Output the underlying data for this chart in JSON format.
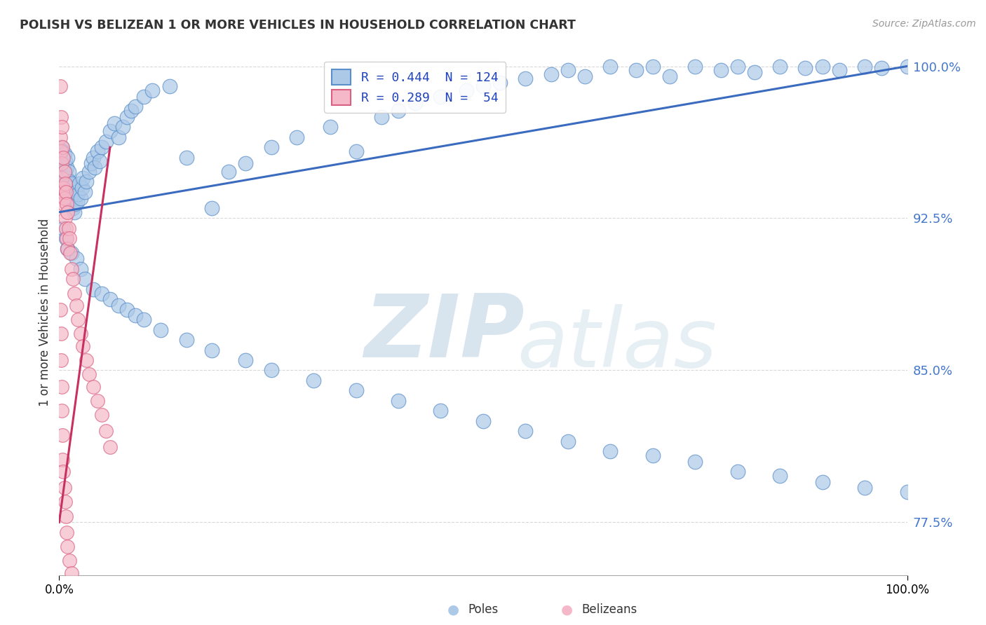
{
  "title": "POLISH VS BELIZEAN 1 OR MORE VEHICLES IN HOUSEHOLD CORRELATION CHART",
  "source": "Source: ZipAtlas.com",
  "ylabel": "1 or more Vehicles in Household",
  "ytick_labels": [
    "77.5%",
    "85.0%",
    "92.5%",
    "100.0%"
  ],
  "ytick_values": [
    0.775,
    0.85,
    0.925,
    1.0
  ],
  "legend_label_poles": "R = 0.444  N = 124",
  "legend_label_beliz": "R = 0.289  N =  54",
  "poles_color": "#adc9e8",
  "poles_edge_color": "#5b8fc9",
  "belizeans_color": "#f5b8c8",
  "belizeans_edge_color": "#d96080",
  "trend_poles_color": "#3a6bbf",
  "trend_belizeans_color": "#c83060",
  "watermark_zip": "ZIP",
  "watermark_atlas": "atlas",
  "watermark_color_zip": "#b8cfe0",
  "watermark_color_atlas": "#c8dce8",
  "background_color": "#ffffff",
  "grid_color": "#d8d8d8",
  "xmin": 0.0,
  "xmax": 1.0,
  "ymin": 0.749,
  "ymax": 1.008,
  "poles_x": [
    0.002,
    0.003,
    0.003,
    0.004,
    0.004,
    0.005,
    0.005,
    0.006,
    0.006,
    0.007,
    0.007,
    0.008,
    0.008,
    0.009,
    0.009,
    0.01,
    0.01,
    0.011,
    0.011,
    0.012,
    0.012,
    0.013,
    0.014,
    0.015,
    0.015,
    0.016,
    0.017,
    0.018,
    0.019,
    0.02,
    0.021,
    0.022,
    0.024,
    0.025,
    0.027,
    0.028,
    0.03,
    0.032,
    0.035,
    0.038,
    0.04,
    0.042,
    0.045,
    0.048,
    0.05,
    0.055,
    0.06,
    0.065,
    0.07,
    0.075,
    0.08,
    0.085,
    0.09,
    0.1,
    0.11,
    0.13,
    0.15,
    0.18,
    0.2,
    0.22,
    0.25,
    0.28,
    0.32,
    0.35,
    0.38,
    0.4,
    0.42,
    0.45,
    0.48,
    0.5,
    0.52,
    0.55,
    0.58,
    0.6,
    0.62,
    0.65,
    0.68,
    0.7,
    0.72,
    0.75,
    0.78,
    0.8,
    0.82,
    0.85,
    0.88,
    0.9,
    0.92,
    0.95,
    0.97,
    1.0,
    0.005,
    0.008,
    0.01,
    0.015,
    0.02,
    0.025,
    0.03,
    0.04,
    0.05,
    0.06,
    0.07,
    0.08,
    0.09,
    0.1,
    0.12,
    0.15,
    0.18,
    0.22,
    0.25,
    0.3,
    0.35,
    0.4,
    0.45,
    0.5,
    0.55,
    0.6,
    0.65,
    0.7,
    0.75,
    0.8,
    0.85,
    0.9,
    0.95,
    1.0
  ],
  "poles_y": [
    0.955,
    0.96,
    0.95,
    0.945,
    0.958,
    0.952,
    0.947,
    0.943,
    0.957,
    0.948,
    0.953,
    0.942,
    0.936,
    0.95,
    0.945,
    0.94,
    0.955,
    0.935,
    0.948,
    0.943,
    0.938,
    0.932,
    0.94,
    0.936,
    0.942,
    0.93,
    0.935,
    0.928,
    0.932,
    0.938,
    0.933,
    0.937,
    0.942,
    0.935,
    0.94,
    0.945,
    0.938,
    0.943,
    0.948,
    0.952,
    0.955,
    0.95,
    0.958,
    0.953,
    0.96,
    0.963,
    0.968,
    0.972,
    0.965,
    0.97,
    0.975,
    0.978,
    0.98,
    0.985,
    0.988,
    0.99,
    0.955,
    0.93,
    0.948,
    0.952,
    0.96,
    0.965,
    0.97,
    0.958,
    0.975,
    0.978,
    0.982,
    0.985,
    0.988,
    0.99,
    0.992,
    0.994,
    0.996,
    0.998,
    0.995,
    1.0,
    0.998,
    1.0,
    0.995,
    1.0,
    0.998,
    1.0,
    0.997,
    1.0,
    0.999,
    1.0,
    0.998,
    1.0,
    0.999,
    1.0,
    0.92,
    0.915,
    0.91,
    0.908,
    0.905,
    0.9,
    0.895,
    0.89,
    0.888,
    0.885,
    0.882,
    0.88,
    0.877,
    0.875,
    0.87,
    0.865,
    0.86,
    0.855,
    0.85,
    0.845,
    0.84,
    0.835,
    0.83,
    0.825,
    0.82,
    0.815,
    0.81,
    0.808,
    0.805,
    0.8,
    0.798,
    0.795,
    0.792,
    0.79
  ],
  "belizeans_x": [
    0.001,
    0.001,
    0.002,
    0.002,
    0.003,
    0.003,
    0.003,
    0.004,
    0.004,
    0.005,
    0.005,
    0.005,
    0.006,
    0.006,
    0.007,
    0.007,
    0.008,
    0.008,
    0.009,
    0.009,
    0.01,
    0.01,
    0.011,
    0.012,
    0.013,
    0.015,
    0.016,
    0.018,
    0.02,
    0.022,
    0.025,
    0.028,
    0.032,
    0.035,
    0.04,
    0.045,
    0.05,
    0.055,
    0.06,
    0.001,
    0.002,
    0.002,
    0.003,
    0.003,
    0.004,
    0.004,
    0.005,
    0.006,
    0.007,
    0.008,
    0.009,
    0.01,
    0.012,
    0.015
  ],
  "belizeans_y": [
    0.99,
    0.965,
    0.975,
    0.958,
    0.97,
    0.952,
    0.945,
    0.96,
    0.938,
    0.955,
    0.94,
    0.932,
    0.948,
    0.935,
    0.942,
    0.925,
    0.938,
    0.92,
    0.932,
    0.915,
    0.928,
    0.91,
    0.92,
    0.915,
    0.908,
    0.9,
    0.895,
    0.888,
    0.882,
    0.875,
    0.868,
    0.862,
    0.855,
    0.848,
    0.842,
    0.835,
    0.828,
    0.82,
    0.812,
    0.88,
    0.868,
    0.855,
    0.842,
    0.83,
    0.818,
    0.806,
    0.8,
    0.792,
    0.785,
    0.778,
    0.77,
    0.763,
    0.756,
    0.75
  ],
  "trend_poles_x0": 0.0,
  "trend_poles_x1": 1.0,
  "trend_poles_y0": 0.928,
  "trend_poles_y1": 1.0,
  "trend_beliz_x0": 0.0,
  "trend_beliz_x1": 0.06,
  "trend_beliz_y0": 0.775,
  "trend_beliz_y1": 0.96
}
